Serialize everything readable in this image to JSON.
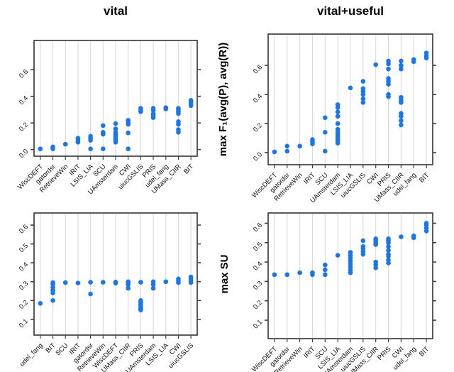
{
  "header": {
    "left_title": "vital",
    "right_title": "vital+useful"
  },
  "axes": {
    "f1_label": "max F₁(avg(P), avg(R))",
    "su_label": "max SU"
  },
  "colors": {
    "point": "#1b76e8",
    "grid": "#d8d8d8",
    "frame": "#3f3f3f",
    "text": "#111111"
  },
  "chart_data": [
    {
      "id": "top-left",
      "type": "scatter",
      "subtype": "strip-plot",
      "condition": "vital",
      "measure": "max F1(avg(P), avg(R))",
      "grid": "vertical",
      "legend": "none",
      "categories": [
        "WiscDEFT",
        "gatordsr",
        "RetrieveWin",
        "IRIT",
        "LSIS_LIA",
        "SCU",
        "UAmsterdam",
        "CWI",
        "uiucGSLIS",
        "PRIS",
        "udel_fang",
        "UMass_CIIR",
        "BIT"
      ],
      "values": [
        [
          0.005
        ],
        [
          0.005,
          0.02
        ],
        [
          0.04
        ],
        [
          0.055,
          0.07,
          0.085
        ],
        [
          0.005,
          0.07,
          0.085,
          0.1
        ],
        [
          0.005,
          0.115,
          0.13,
          0.18
        ],
        [
          0.055,
          0.07,
          0.085,
          0.1,
          0.115,
          0.13,
          0.155,
          0.195
        ],
        [
          0.005,
          0.125,
          0.19,
          0.205,
          0.22
        ],
        [
          0.285,
          0.3,
          0.31
        ],
        [
          0.24,
          0.255,
          0.27,
          0.295,
          0.31
        ],
        [
          0.305,
          0.315
        ],
        [
          0.13,
          0.15,
          0.19,
          0.21,
          0.27,
          0.285,
          0.3,
          0.31
        ],
        [
          0.33,
          0.345,
          0.36,
          0.37
        ]
      ],
      "ytick_labels": [
        "0.0",
        "0.2",
        "0.4",
        "0.6"
      ],
      "ytick_values": [
        0.0,
        0.2,
        0.4,
        0.6
      ],
      "ylim": [
        -0.05,
        0.82
      ]
    },
    {
      "id": "top-right",
      "type": "scatter",
      "subtype": "strip-plot",
      "condition": "vital+useful",
      "measure": "max F1(avg(P), avg(R))",
      "grid": "vertical",
      "legend": "none",
      "categories": [
        "WiscDEFT",
        "gatordsr",
        "RetrieveWin",
        "IRIT",
        "SCU",
        "UAmsterdam",
        "LSIS_LIA",
        "uiucGSLIS",
        "CWI",
        "PRIS",
        "UMass_CIIR",
        "udel_fang",
        "BIT"
      ],
      "values": [
        [
          0.005
        ],
        [
          0.01,
          0.045
        ],
        [
          0.045
        ],
        [
          0.06,
          0.075,
          0.09
        ],
        [
          0.01,
          0.14,
          0.24
        ],
        [
          0.065,
          0.08,
          0.095,
          0.11,
          0.125,
          0.14,
          0.16,
          0.2,
          0.25,
          0.28,
          0.31,
          0.33
        ],
        [
          0.445
        ],
        [
          0.345,
          0.37,
          0.4,
          0.42,
          0.44,
          0.49
        ],
        [
          0.605
        ],
        [
          0.385,
          0.4,
          0.47,
          0.49,
          0.51,
          0.575,
          0.61,
          0.63
        ],
        [
          0.19,
          0.22,
          0.25,
          0.27,
          0.345,
          0.36,
          0.38,
          0.575,
          0.6,
          0.63
        ],
        [
          0.625,
          0.64
        ],
        [
          0.65,
          0.665,
          0.685
        ]
      ],
      "ytick_labels": [
        "0.0",
        "0.2",
        "0.4",
        "0.6"
      ],
      "ytick_values": [
        0.0,
        0.2,
        0.4,
        0.6
      ],
      "ylim": [
        -0.083,
        0.815
      ]
    },
    {
      "id": "bottom-left",
      "type": "scatter",
      "subtype": "strip-plot",
      "condition": "vital",
      "measure": "max SU",
      "grid": "vertical",
      "legend": "none",
      "categories": [
        "udel_fang",
        "BIT",
        "SCU",
        "IRIT",
        "gatordsr",
        "RetrieveWin",
        "WiscDEFT",
        "UMass_CIIR",
        "PRIS",
        "UAmsterdam",
        "LSIS_LIA",
        "CWI",
        "uiucGSLIS"
      ],
      "values": [
        [
          0.185
        ],
        [
          0.2,
          0.24,
          0.255,
          0.27,
          0.285,
          0.295
        ],
        [
          0.295
        ],
        [
          0.293
        ],
        [
          0.235,
          0.297
        ],
        [
          0.297
        ],
        [
          0.292,
          0.298
        ],
        [
          0.265,
          0.285,
          0.295,
          0.3
        ],
        [
          0.15,
          0.16,
          0.17,
          0.18,
          0.19,
          0.2,
          0.297
        ],
        [
          0.265,
          0.285,
          0.3
        ],
        [
          0.3
        ],
        [
          0.295,
          0.305,
          0.315
        ],
        [
          0.295,
          0.305,
          0.315,
          0.325
        ]
      ],
      "ytick_labels": [
        "0.1",
        "0.2",
        "0.3",
        "0.4",
        "0.5",
        "0.6"
      ],
      "ytick_values": [
        0.1,
        0.2,
        0.3,
        0.4,
        0.5,
        0.6
      ],
      "ylim": [
        0.017,
        0.664
      ]
    },
    {
      "id": "bottom-right",
      "type": "scatter",
      "subtype": "strip-plot",
      "condition": "vital+useful",
      "measure": "max SU",
      "grid": "vertical",
      "legend": "none",
      "categories": [
        "WiscDEFT",
        "gatordsr",
        "RetrieveWin",
        "IRIT",
        "SCU",
        "LSIS_LIA",
        "UAmsterdam",
        "uiucGSLIS",
        "UMass_CIIR",
        "PRIS",
        "CWI",
        "udel_fang",
        "BIT"
      ],
      "values": [
        [
          0.335
        ],
        [
          0.335
        ],
        [
          0.345
        ],
        [
          0.335,
          0.345
        ],
        [
          0.335,
          0.36,
          0.385
        ],
        [
          0.435
        ],
        [
          0.345,
          0.36,
          0.375,
          0.39,
          0.405,
          0.42,
          0.435,
          0.45
        ],
        [
          0.44,
          0.455,
          0.47,
          0.48,
          0.51
        ],
        [
          0.37,
          0.385,
          0.4,
          0.49,
          0.5,
          0.51,
          0.52
        ],
        [
          0.395,
          0.41,
          0.43,
          0.44,
          0.46,
          0.48,
          0.5,
          0.51,
          0.52
        ],
        [
          0.53
        ],
        [
          0.525,
          0.535
        ],
        [
          0.56,
          0.575,
          0.59,
          0.6
        ]
      ],
      "ytick_labels": [
        "0.1",
        "0.2",
        "0.3",
        "0.4",
        "0.5",
        "0.6"
      ],
      "ytick_values": [
        0.1,
        0.2,
        0.3,
        0.4,
        0.5,
        0.6
      ],
      "ylim": [
        0.005,
        0.653
      ]
    }
  ]
}
